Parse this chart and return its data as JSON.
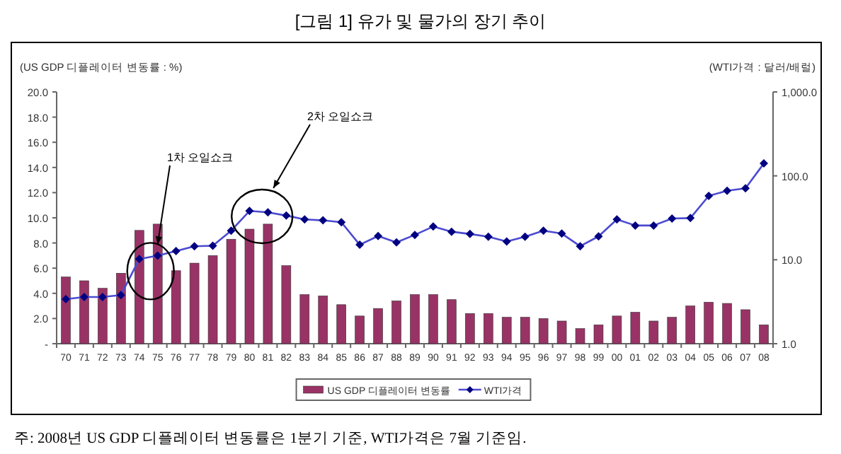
{
  "chart_data": {
    "type": "bar",
    "title": "[그림 1] 유가 및 물가의 장기 추이",
    "ylabel": "(US GDP 디플레이터 변동률 : %)",
    "y2label": "(WTI가격 : 달러/배럴)",
    "categories": [
      "70",
      "71",
      "72",
      "73",
      "74",
      "75",
      "76",
      "77",
      "78",
      "79",
      "80",
      "81",
      "82",
      "83",
      "84",
      "85",
      "86",
      "87",
      "88",
      "89",
      "90",
      "91",
      "92",
      "93",
      "94",
      "95",
      "96",
      "97",
      "98",
      "99",
      "00",
      "01",
      "02",
      "03",
      "04",
      "05",
      "06",
      "07",
      "08"
    ],
    "series": [
      {
        "name": "US GDP 디플레이터 변동률",
        "type": "bar",
        "color": "#993366",
        "values": [
          5.3,
          5.0,
          4.4,
          5.6,
          9.0,
          9.5,
          5.8,
          6.4,
          7.0,
          8.3,
          9.1,
          9.5,
          6.2,
          3.9,
          3.8,
          3.1,
          2.2,
          2.8,
          3.4,
          3.9,
          3.9,
          3.5,
          2.4,
          2.4,
          2.1,
          2.1,
          2.0,
          1.8,
          1.2,
          1.5,
          2.2,
          2.5,
          1.8,
          2.1,
          3.0,
          3.3,
          3.2,
          2.7,
          1.5
        ]
      },
      {
        "name": "WTI가격",
        "type": "line",
        "axis": "y2",
        "color": "#000080",
        "marker": "diamond",
        "values": [
          3.4,
          3.6,
          3.6,
          3.8,
          10.2,
          11.2,
          12.7,
          14.5,
          14.7,
          22.2,
          38.2,
          36.7,
          33.6,
          30.3,
          29.5,
          28.0,
          15.1,
          19.2,
          16.1,
          19.8,
          24.9,
          21.6,
          20.3,
          18.8,
          16.5,
          18.8,
          22.2,
          20.5,
          14.5,
          19.0,
          30.3,
          25.6,
          25.6,
          31.0,
          31.4,
          57.7,
          66.5,
          71.0,
          140.6
        ]
      }
    ],
    "ylim": [
      0,
      20
    ],
    "yticks": [
      {
        "value": 0,
        "label": "-"
      },
      {
        "value": 2,
        "label": "2.0"
      },
      {
        "value": 4,
        "label": "4.0"
      },
      {
        "value": 6,
        "label": "6.0"
      },
      {
        "value": 8,
        "label": "8.0"
      },
      {
        "value": 10,
        "label": "10.0"
      },
      {
        "value": 12,
        "label": "12.0"
      },
      {
        "value": 14,
        "label": "14.0"
      },
      {
        "value": 16,
        "label": "16.0"
      },
      {
        "value": 18,
        "label": "18.0"
      },
      {
        "value": 20,
        "label": "20.0"
      }
    ],
    "y2lim": [
      1,
      1000
    ],
    "y2ticks": [
      {
        "value": 1,
        "label": "1.0"
      },
      {
        "value": 10,
        "label": "10.0"
      },
      {
        "value": 100,
        "label": "100.0"
      },
      {
        "value": 1000,
        "label": "1,000.0"
      }
    ],
    "log": "y2",
    "legend": "bottom",
    "grid": false,
    "annotations": [
      {
        "text": "1차 오일쇼크",
        "x": "75",
        "y": 7.9
      },
      "2차 오일쇼크",
      "주: 2008년 US GDP 디플레이터 변동률은 1분기 기준, WTI가격은 7월 기준임."
    ]
  }
}
